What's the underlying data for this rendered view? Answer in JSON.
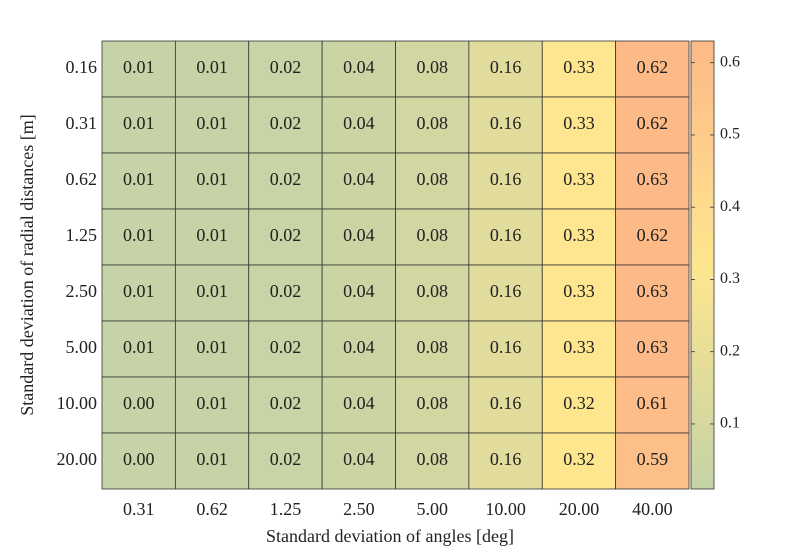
{
  "chart_data": {
    "type": "heatmap",
    "xlabel": "Standard deviation of angles [deg]",
    "ylabel": "Standard deviation of radial distances [m]",
    "x_categories": [
      "0.31",
      "0.62",
      "1.25",
      "2.50",
      "5.00",
      "10.00",
      "20.00",
      "40.00"
    ],
    "y_categories": [
      "0.16",
      "0.31",
      "0.62",
      "1.25",
      "2.50",
      "5.00",
      "10.00",
      "20.00"
    ],
    "values": [
      [
        0.01,
        0.01,
        0.02,
        0.04,
        0.08,
        0.16,
        0.33,
        0.62
      ],
      [
        0.01,
        0.01,
        0.02,
        0.04,
        0.08,
        0.16,
        0.33,
        0.62
      ],
      [
        0.01,
        0.01,
        0.02,
        0.04,
        0.08,
        0.16,
        0.33,
        0.63
      ],
      [
        0.01,
        0.01,
        0.02,
        0.04,
        0.08,
        0.16,
        0.33,
        0.62
      ],
      [
        0.01,
        0.01,
        0.02,
        0.04,
        0.08,
        0.16,
        0.33,
        0.63
      ],
      [
        0.01,
        0.01,
        0.02,
        0.04,
        0.08,
        0.16,
        0.33,
        0.63
      ],
      [
        0,
        0.01,
        0.02,
        0.04,
        0.08,
        0.16,
        0.32,
        0.61
      ],
      [
        0,
        0.01,
        0.02,
        0.04,
        0.08,
        0.16,
        0.32,
        0.59
      ]
    ],
    "value_labels": [
      [
        "0.01",
        "0.01",
        "0.02",
        "0.04",
        "0.08",
        "0.16",
        "0.33",
        "0.62"
      ],
      [
        "0.01",
        "0.01",
        "0.02",
        "0.04",
        "0.08",
        "0.16",
        "0.33",
        "0.62"
      ],
      [
        "0.01",
        "0.01",
        "0.02",
        "0.04",
        "0.08",
        "0.16",
        "0.33",
        "0.63"
      ],
      [
        "0.01",
        "0.01",
        "0.02",
        "0.04",
        "0.08",
        "0.16",
        "0.33",
        "0.62"
      ],
      [
        "0.01",
        "0.01",
        "0.02",
        "0.04",
        "0.08",
        "0.16",
        "0.33",
        "0.63"
      ],
      [
        "0.01",
        "0.01",
        "0.02",
        "0.04",
        "0.08",
        "0.16",
        "0.33",
        "0.63"
      ],
      [
        "0.00",
        "0.01",
        "0.02",
        "0.04",
        "0.08",
        "0.16",
        "0.32",
        "0.61"
      ],
      [
        "0.00",
        "0.01",
        "0.02",
        "0.04",
        "0.08",
        "0.16",
        "0.32",
        "0.59"
      ]
    ],
    "colormap": [
      "#c5d3a6",
      "#fee68f",
      "#fdb987"
    ],
    "clim": [
      0.01,
      0.63
    ],
    "cticks": [
      0.1,
      0.2,
      0.3,
      0.4,
      0.5,
      0.6
    ]
  }
}
